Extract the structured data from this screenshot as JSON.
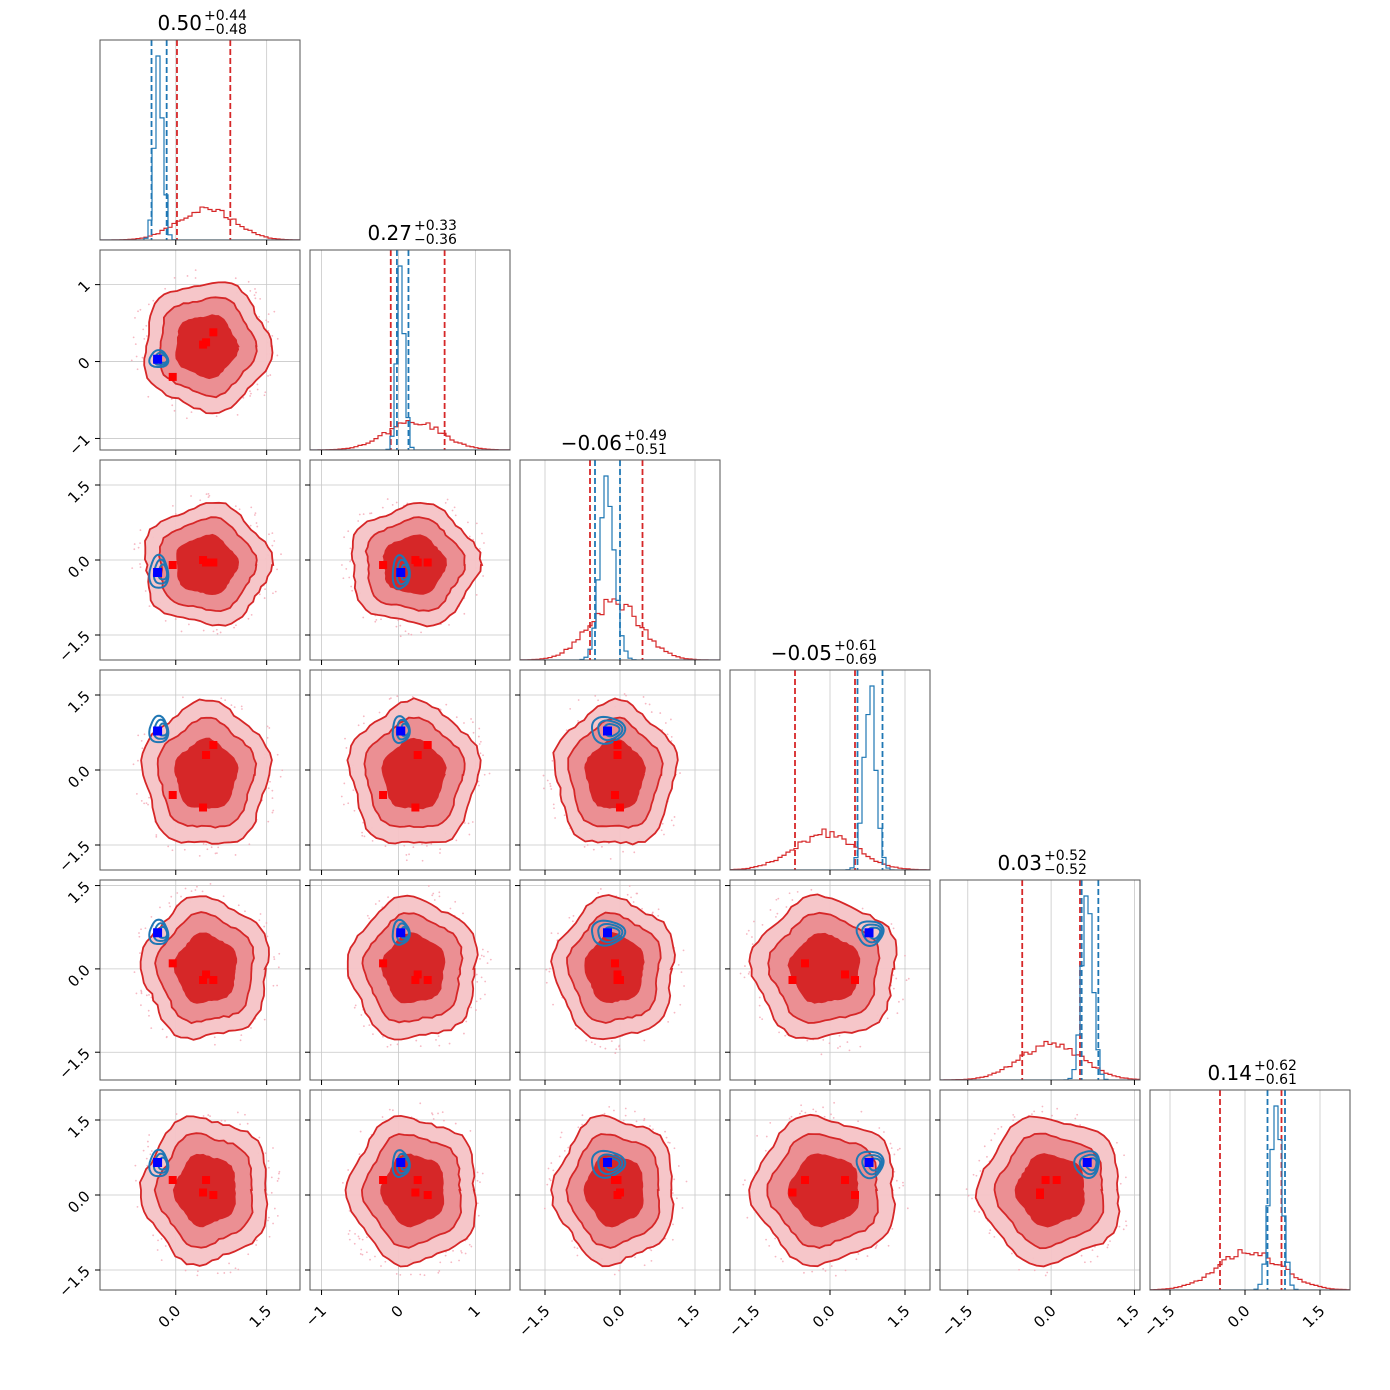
{
  "chart_data": {
    "type": "corner",
    "dimensions": 6,
    "titles": [
      {
        "median": "0.50",
        "plus": "+0.44",
        "minus": "−0.48"
      },
      {
        "median": "0.27",
        "plus": "+0.33",
        "minus": "−0.36"
      },
      {
        "median": "−0.06",
        "plus": "+0.49",
        "minus": "−0.51"
      },
      {
        "median": "−0.05",
        "plus": "+0.61",
        "minus": "−0.69"
      },
      {
        "median": "0.03",
        "plus": "+0.52",
        "minus": "−0.52"
      },
      {
        "median": "0.14",
        "plus": "+0.62",
        "minus": "−0.61"
      }
    ],
    "ranges": [
      [
        -1.25,
        2.05
      ],
      [
        -1.15,
        1.45
      ],
      [
        -2.0,
        2.0
      ],
      [
        -2.0,
        2.0
      ],
      [
        -2.0,
        1.6
      ],
      [
        -1.9,
        2.1
      ]
    ],
    "x_ticks": [
      {
        "values": [
          0.0,
          1.5
        ],
        "labels": [
          "0.0",
          "1.5"
        ]
      },
      {
        "values": [
          -1,
          0,
          1
        ],
        "labels": [
          "−1",
          "0",
          "1"
        ]
      },
      {
        "values": [
          -1.5,
          0.0,
          1.5
        ],
        "labels": [
          "−1.5",
          "0.0",
          "1.5"
        ]
      },
      {
        "values": [
          -1.5,
          0.0,
          1.5
        ],
        "labels": [
          "−1.5",
          "0.0",
          "1.5"
        ]
      },
      {
        "values": [
          -1.5,
          0.0,
          1.5
        ],
        "labels": [
          "−1.5",
          "0.0",
          "1.5"
        ]
      },
      {
        "values": [
          -1.5,
          0.0,
          1.5
        ],
        "labels": [
          "−1.5",
          "0.0",
          "1.5"
        ]
      }
    ],
    "y_ticks": [
      null,
      {
        "values": [
          -1,
          0,
          1
        ],
        "labels": [
          "−1",
          "0",
          "1"
        ]
      },
      {
        "values": [
          -1.5,
          0.0,
          1.5
        ],
        "labels": [
          "−1.5",
          "0.0",
          "1.5"
        ]
      },
      {
        "values": [
          -1.5,
          0.0,
          1.5
        ],
        "labels": [
          "−1.5",
          "0.0",
          "1.5"
        ]
      },
      {
        "values": [
          -1.5,
          0.0,
          1.5
        ],
        "labels": [
          "−1.5",
          "0.0",
          "1.5"
        ]
      },
      {
        "values": [
          -1.5,
          0.0,
          1.5
        ],
        "labels": [
          "−1.5",
          "0.0",
          "1.5"
        ]
      }
    ],
    "series": [
      {
        "color": "#d62728",
        "centers": [
          0.5,
          0.2,
          -0.1,
          -0.1,
          0.0,
          0.1
        ],
        "sigmas": [
          0.45,
          0.36,
          0.52,
          0.62,
          0.55,
          0.63
        ],
        "quantiles": [
          [
            0.02,
            0.9
          ],
          [
            -0.1,
            0.6
          ],
          [
            -0.6,
            0.45
          ],
          [
            -0.7,
            0.5
          ],
          [
            -0.52,
            0.52
          ],
          [
            -0.5,
            0.73
          ]
        ]
      },
      {
        "color": "#1f77b4",
        "centers": [
          -0.28,
          0.03,
          -0.25,
          0.8,
          0.65,
          0.62
        ],
        "sigmas": [
          0.07,
          0.05,
          0.15,
          0.12,
          0.1,
          0.12
        ],
        "quantiles": [
          [
            -0.4,
            -0.15
          ],
          [
            -0.02,
            0.13
          ],
          [
            -0.5,
            0.0
          ],
          [
            0.55,
            1.05
          ],
          [
            0.55,
            0.85
          ],
          [
            0.45,
            0.8
          ]
        ]
      }
    ],
    "truth_markers": {
      "color": "#0000ff",
      "values": [
        -0.3,
        0.03,
        -0.25,
        0.78,
        0.65,
        0.65
      ]
    },
    "red_markers": {
      "color": "#ff0000",
      "values": [
        [
          0.5,
          0.25,
          -0.05,
          0.3,
          -0.1,
          0.3
        ],
        [
          0.62,
          0.38,
          -0.05,
          0.5,
          -0.2,
          0.0
        ],
        [
          -0.05,
          -0.2,
          -0.1,
          -0.5,
          0.1,
          0.3
        ],
        [
          0.45,
          0.22,
          0.0,
          -0.75,
          -0.2,
          0.05
        ]
      ]
    },
    "grid": true
  }
}
